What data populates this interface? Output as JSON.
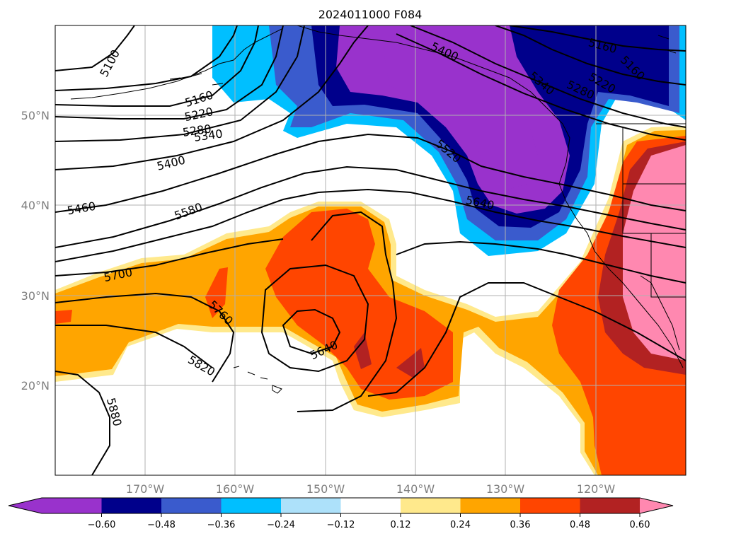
{
  "title": "2024011000 F084",
  "lon_labels": [
    "170°W",
    "160°W",
    "150°W",
    "140°W",
    "130°W",
    "120°W"
  ],
  "lat_labels": [
    "50°N",
    "40°N",
    "30°N",
    "20°N"
  ],
  "colorbar": {
    "ticks": [
      "−0.60",
      "−0.48",
      "−0.36",
      "−0.24",
      "−0.12",
      "0.12",
      "0.24",
      "0.36",
      "0.48",
      "0.60"
    ],
    "colors": [
      "#9932cc",
      "#00008b",
      "#3a5bcd",
      "#00bfff",
      "#ade1fa",
      "#ffffff",
      "#ffe98c",
      "#ffa500",
      "#ff4500",
      "#b22222",
      "#ff88b0"
    ]
  },
  "contour_labels": {
    "c5100": "5100",
    "c5160a": "5160",
    "c5220a": "5220",
    "c5280a": "5280",
    "c5340": "5340",
    "c5400a": "5400",
    "c5460": "5460",
    "c5580": "5580",
    "c5700": "5700",
    "c5760": "5760",
    "c5820": "5820",
    "c5880": "5880",
    "c5640a": "5640",
    "c5520": "5520",
    "c5640b": "5640",
    "c5400b": "5400",
    "c5340b": "5340",
    "c5280b": "5280",
    "c5220b": "5220",
    "c5160b": "5160",
    "c5160c": "5160"
  }
}
